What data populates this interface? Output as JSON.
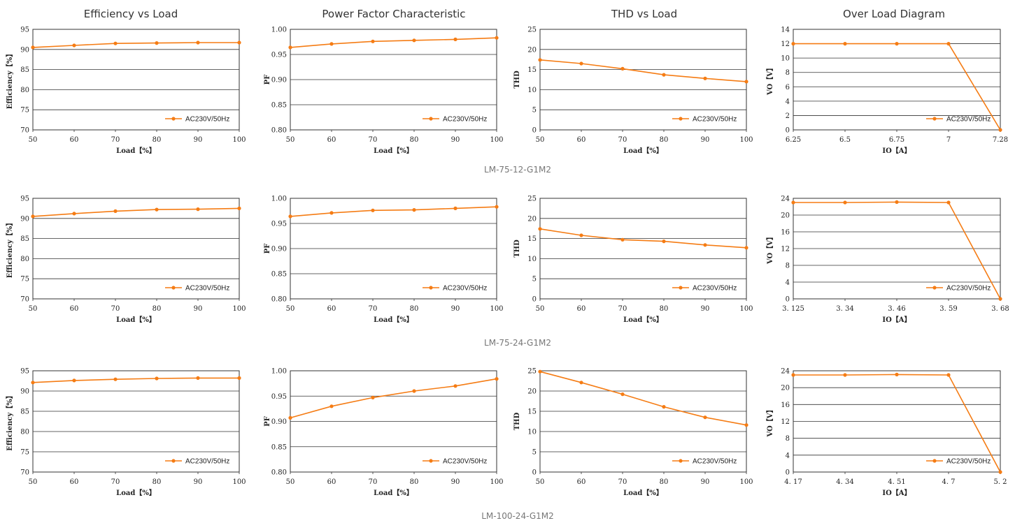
{
  "column_titles": [
    "Efficiency vs Load",
    "Power Factor Characteristic",
    "THD vs Load",
    "Over Load Diagram"
  ],
  "model_labels": [
    "LM-75-12-G1M2",
    "LM-75-24-G1M2",
    "LM-100-24-G1M2"
  ],
  "colors": {
    "series": "#f57c14",
    "grid": "#333333",
    "text": "#222222"
  },
  "chart_data": [
    {
      "type": "line",
      "row": 0,
      "col": 0,
      "x": [
        50,
        60,
        70,
        80,
        90,
        100
      ],
      "values": [
        90.5,
        91.0,
        91.5,
        91.6,
        91.7,
        91.7
      ],
      "series": [
        {
          "name": "AC230V/50Hz",
          "values": [
            90.5,
            91.0,
            91.5,
            91.6,
            91.7,
            91.7
          ]
        }
      ],
      "xlabel": "Load【%】",
      "ylabel": "Efficiency【%】",
      "ylim": [
        70,
        95
      ],
      "y_ticks": [
        "70",
        "75",
        "80",
        "85",
        "90",
        "95"
      ],
      "x_ticks": [
        "50",
        "60",
        "70",
        "80",
        "90",
        "100"
      ],
      "legend": "bottom-right",
      "grid": true
    },
    {
      "type": "line",
      "row": 0,
      "col": 1,
      "x": [
        50,
        60,
        70,
        80,
        90,
        100
      ],
      "values": [
        0.964,
        0.971,
        0.976,
        0.978,
        0.98,
        0.983
      ],
      "series": [
        {
          "name": "AC230V/50Hz",
          "values": [
            0.964,
            0.971,
            0.976,
            0.978,
            0.98,
            0.983
          ]
        }
      ],
      "xlabel": "Load【%】",
      "ylabel": "PF",
      "ylim": [
        0.8,
        1.0
      ],
      "y_ticks": [
        "0.80",
        "0.85",
        "0.90",
        "0.95",
        "1.00"
      ],
      "x_ticks": [
        "50",
        "60",
        "70",
        "80",
        "90",
        "100"
      ],
      "legend": "bottom-right",
      "grid": true
    },
    {
      "type": "line",
      "row": 0,
      "col": 2,
      "x": [
        50,
        60,
        70,
        80,
        90,
        100
      ],
      "values": [
        17.4,
        16.5,
        15.2,
        13.7,
        12.8,
        12.0
      ],
      "series": [
        {
          "name": "AC230V/50Hz",
          "values": [
            17.4,
            16.5,
            15.2,
            13.7,
            12.8,
            12.0
          ]
        }
      ],
      "xlabel": "Load【%】",
      "ylabel": "THD",
      "ylim": [
        0,
        25
      ],
      "y_ticks": [
        "0",
        "5",
        "10",
        "15",
        "20",
        "25"
      ],
      "x_ticks": [
        "50",
        "60",
        "70",
        "80",
        "90",
        "100"
      ],
      "legend": "bottom-right",
      "grid": true
    },
    {
      "type": "line",
      "row": 0,
      "col": 3,
      "categorical": true,
      "x": [
        "6.25",
        "6.5",
        "6.75",
        "7",
        "7.28"
      ],
      "values": [
        12,
        12,
        12,
        12,
        0
      ],
      "series": [
        {
          "name": "AC230V/50Hz",
          "values": [
            12,
            12,
            12,
            12,
            0
          ]
        }
      ],
      "xlabel": "IO【A】",
      "ylabel": "VO【V】",
      "ylim": [
        0,
        14
      ],
      "y_ticks": [
        "0",
        "2",
        "4",
        "6",
        "8",
        "10",
        "12",
        "14"
      ],
      "x_ticks": [
        "6.25",
        "6.5",
        "6.75",
        "7",
        "7.28"
      ],
      "legend": "bottom-right",
      "grid": true
    },
    {
      "type": "line",
      "row": 1,
      "col": 0,
      "x": [
        50,
        60,
        70,
        80,
        90,
        100
      ],
      "values": [
        90.5,
        91.2,
        91.8,
        92.2,
        92.3,
        92.5
      ],
      "series": [
        {
          "name": "AC230V/50Hz",
          "values": [
            90.5,
            91.2,
            91.8,
            92.2,
            92.3,
            92.5
          ]
        }
      ],
      "xlabel": "Load【%】",
      "ylabel": "Efficiency【%】",
      "ylim": [
        70,
        95
      ],
      "y_ticks": [
        "70",
        "75",
        "80",
        "85",
        "90",
        "95"
      ],
      "x_ticks": [
        "50",
        "60",
        "70",
        "80",
        "90",
        "100"
      ],
      "legend": "bottom-right",
      "grid": true
    },
    {
      "type": "line",
      "row": 1,
      "col": 1,
      "x": [
        50,
        60,
        70,
        80,
        90,
        100
      ],
      "values": [
        0.964,
        0.971,
        0.976,
        0.977,
        0.98,
        0.983
      ],
      "series": [
        {
          "name": "AC230V/50Hz",
          "values": [
            0.964,
            0.971,
            0.976,
            0.977,
            0.98,
            0.983
          ]
        }
      ],
      "xlabel": "Load【%】",
      "ylabel": "PF",
      "ylim": [
        0.8,
        1.0
      ],
      "y_ticks": [
        "0.80",
        "0.85",
        "0.90",
        "0.95",
        "1.00"
      ],
      "x_ticks": [
        "50",
        "60",
        "70",
        "80",
        "90",
        "100"
      ],
      "legend": "bottom-right",
      "grid": true
    },
    {
      "type": "line",
      "row": 1,
      "col": 2,
      "x": [
        50,
        60,
        70,
        80,
        90,
        100
      ],
      "values": [
        17.4,
        15.8,
        14.7,
        14.3,
        13.4,
        12.7
      ],
      "series": [
        {
          "name": "AC230V/50Hz",
          "values": [
            17.4,
            15.8,
            14.7,
            14.3,
            13.4,
            12.7
          ]
        }
      ],
      "xlabel": "Load【%】",
      "ylabel": "THD",
      "ylim": [
        0,
        25
      ],
      "y_ticks": [
        "0",
        "5",
        "10",
        "15",
        "20",
        "25"
      ],
      "x_ticks": [
        "50",
        "60",
        "70",
        "80",
        "90",
        "100"
      ],
      "legend": "bottom-right",
      "grid": true
    },
    {
      "type": "line",
      "row": 1,
      "col": 3,
      "categorical": true,
      "x": [
        "3.125",
        "3.34",
        "3.46",
        "3.59",
        "3.68"
      ],
      "values": [
        23,
        23,
        23.1,
        23,
        0
      ],
      "series": [
        {
          "name": "AC230V/50Hz",
          "values": [
            23,
            23,
            23.1,
            23,
            0
          ]
        }
      ],
      "xlabel": "IO【A】",
      "ylabel": "VO【V】",
      "ylim": [
        0,
        24
      ],
      "y_ticks": [
        "0",
        "4",
        "8",
        "12",
        "16",
        "20",
        "24"
      ],
      "x_ticks": [
        "3. 125",
        "3. 34",
        "3. 46",
        "3. 59",
        "3. 68"
      ],
      "legend": "bottom-right",
      "grid": true
    },
    {
      "type": "line",
      "row": 2,
      "col": 0,
      "x": [
        50,
        60,
        70,
        80,
        90,
        100
      ],
      "values": [
        92.1,
        92.6,
        92.9,
        93.1,
        93.2,
        93.2
      ],
      "series": [
        {
          "name": "AC230V/50Hz",
          "values": [
            92.1,
            92.6,
            92.9,
            93.1,
            93.2,
            93.2
          ]
        }
      ],
      "xlabel": "Load【%】",
      "ylabel": "Efficiency【%】",
      "ylim": [
        70,
        95
      ],
      "y_ticks": [
        "70",
        "75",
        "80",
        "85",
        "90",
        "95"
      ],
      "x_ticks": [
        "50",
        "60",
        "70",
        "80",
        "90",
        "100"
      ],
      "legend": "bottom-right",
      "grid": true
    },
    {
      "type": "line",
      "row": 2,
      "col": 1,
      "x": [
        50,
        60,
        70,
        80,
        90,
        100
      ],
      "values": [
        0.907,
        0.93,
        0.947,
        0.96,
        0.97,
        0.984
      ],
      "series": [
        {
          "name": "AC230V/50Hz",
          "values": [
            0.907,
            0.93,
            0.947,
            0.96,
            0.97,
            0.984
          ]
        }
      ],
      "xlabel": "Load【%】",
      "ylabel": "PF",
      "ylim": [
        0.8,
        1.0
      ],
      "y_ticks": [
        "0.80",
        "0.85",
        "0.90",
        "0.95",
        "1.00"
      ],
      "x_ticks": [
        "50",
        "60",
        "70",
        "80",
        "90",
        "100"
      ],
      "legend": "bottom-right",
      "grid": true
    },
    {
      "type": "line",
      "row": 2,
      "col": 2,
      "x": [
        50,
        60,
        70,
        80,
        90,
        100
      ],
      "values": [
        24.8,
        22.1,
        19.2,
        16.1,
        13.5,
        11.6
      ],
      "series": [
        {
          "name": "AC230V/50Hz",
          "values": [
            24.8,
            22.1,
            19.2,
            16.1,
            13.5,
            11.6
          ]
        }
      ],
      "xlabel": "Load【%】",
      "ylabel": "THD",
      "ylim": [
        0,
        25
      ],
      "y_ticks": [
        "0",
        "5",
        "10",
        "15",
        "20",
        "25"
      ],
      "x_ticks": [
        "50",
        "60",
        "70",
        "80",
        "90",
        "100"
      ],
      "legend": "bottom-right",
      "grid": true
    },
    {
      "type": "line",
      "row": 2,
      "col": 3,
      "categorical": true,
      "x": [
        "4.17",
        "4.34",
        "4.51",
        "4.7",
        "5.2"
      ],
      "values": [
        23,
        23,
        23.1,
        23,
        0
      ],
      "series": [
        {
          "name": "AC230V/50Hz",
          "values": [
            23,
            23,
            23.1,
            23,
            0
          ]
        }
      ],
      "xlabel": "IO【A】",
      "ylabel": "VO【V】",
      "ylim": [
        0,
        24
      ],
      "y_ticks": [
        "0",
        "4",
        "8",
        "12",
        "16",
        "20",
        "24"
      ],
      "x_ticks": [
        "4. 17",
        "4. 34",
        "4. 51",
        "4. 7",
        "5. 2"
      ],
      "legend": "bottom-right",
      "grid": true
    }
  ]
}
